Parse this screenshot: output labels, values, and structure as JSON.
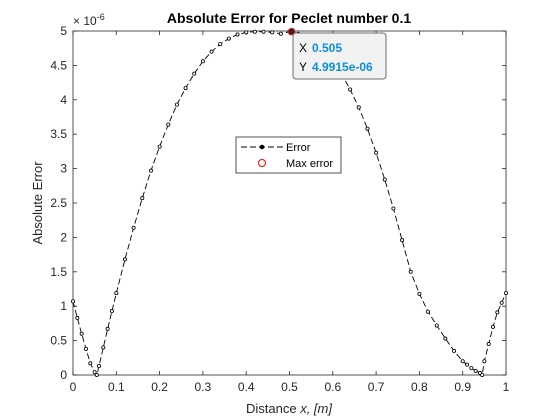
{
  "chart_data": {
    "type": "line",
    "title": "Absolute Error for Peclet number 0.1",
    "xlabel_prefix": "Distance ",
    "xlabel_var": "x, [m]",
    "ylabel": "Absolute Error",
    "y_exponent_label": "× 10",
    "y_exponent": "-6",
    "xlim": [
      0,
      1
    ],
    "ylim": [
      0,
      5
    ],
    "xticks": [
      0,
      0.1,
      0.2,
      0.3,
      0.4,
      0.5,
      0.6,
      0.7,
      0.8,
      0.9,
      1
    ],
    "xtick_labels": [
      "0",
      "0.1",
      "0.2",
      "0.3",
      "0.4",
      "0.5",
      "0.6",
      "0.7",
      "0.8",
      "0.9",
      "1"
    ],
    "yticks": [
      0,
      0.5,
      1,
      1.5,
      2,
      2.5,
      3,
      3.5,
      4,
      4.5,
      5
    ],
    "ytick_labels": [
      "0",
      "0.5",
      "1",
      "1.5",
      "2",
      "2.5",
      "3",
      "3.5",
      "4",
      "4.5",
      "5"
    ],
    "grid": false,
    "legend_position": "center",
    "series": [
      {
        "name": "Error",
        "color": "#000000",
        "style": "dashed line with dot markers",
        "x": [
          0,
          0.01,
          0.02,
          0.03,
          0.04,
          0.05,
          0.055,
          0.06,
          0.07,
          0.08,
          0.09,
          0.1,
          0.12,
          0.14,
          0.16,
          0.18,
          0.2,
          0.22,
          0.24,
          0.26,
          0.28,
          0.3,
          0.32,
          0.34,
          0.36,
          0.38,
          0.4,
          0.42,
          0.44,
          0.46,
          0.48,
          0.5,
          0.505,
          0.52,
          0.54,
          0.56,
          0.58,
          0.6,
          0.62,
          0.64,
          0.66,
          0.68,
          0.7,
          0.72,
          0.74,
          0.76,
          0.78,
          0.8,
          0.82,
          0.84,
          0.86,
          0.88,
          0.9,
          0.91,
          0.92,
          0.93,
          0.94,
          0.945,
          0.95,
          0.96,
          0.97,
          0.98,
          0.99,
          1.0
        ],
        "y": [
          1.07,
          0.83,
          0.6,
          0.38,
          0.17,
          0.04,
          0.0,
          0.13,
          0.4,
          0.67,
          0.93,
          1.19,
          1.68,
          2.14,
          2.57,
          2.97,
          3.32,
          3.64,
          3.93,
          4.17,
          4.38,
          4.56,
          4.7,
          4.81,
          4.89,
          4.95,
          4.98,
          4.99,
          4.99,
          4.98,
          4.96,
          4.99,
          4.9915,
          4.96,
          4.9,
          4.82,
          4.71,
          4.56,
          4.38,
          4.15,
          3.89,
          3.58,
          3.23,
          2.84,
          2.42,
          1.96,
          1.5,
          1.18,
          0.92,
          0.72,
          0.53,
          0.35,
          0.2,
          0.15,
          0.1,
          0.06,
          0.03,
          0.0,
          0.2,
          0.45,
          0.7,
          0.91,
          1.05,
          1.19
        ]
      },
      {
        "name": "Max error",
        "color": "#ff0000",
        "style": "circle marker",
        "x": [
          0.505
        ],
        "y": [
          4.9915
        ]
      }
    ],
    "datatip": {
      "x_key": "X",
      "x_value": "0.505",
      "y_key": "Y",
      "y_value": "4.9915e-06"
    }
  }
}
